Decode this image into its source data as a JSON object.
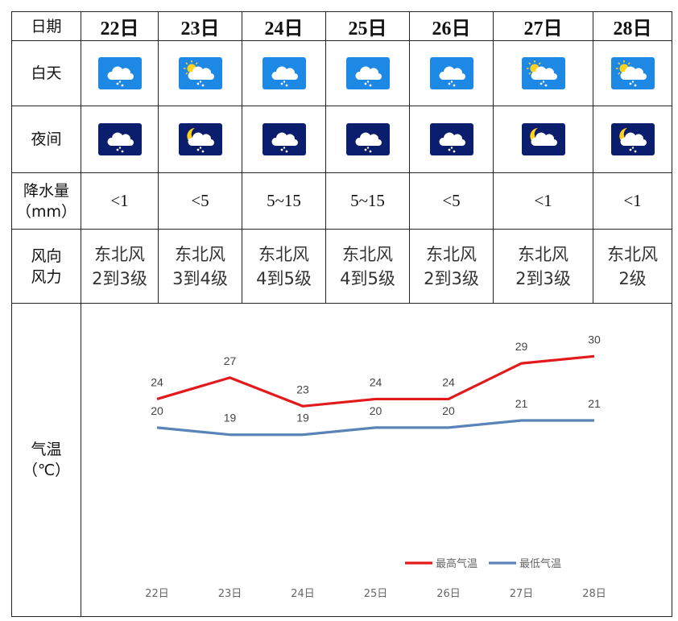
{
  "table": {
    "labels": {
      "date": "日期",
      "day": "白天",
      "night": "夜间",
      "precip_line1": "降水量",
      "precip_line2": "（mm）",
      "wind_line1": "风向",
      "wind_line2": "风力",
      "temp_line1": "气温",
      "temp_line2": "（℃）"
    },
    "days": [
      {
        "date": "22日",
        "day_icon": "rain-icon",
        "night_icon": "night-rain-icon",
        "precip": "<1",
        "wind_dir": "东北风",
        "wind_force": "2到3级"
      },
      {
        "date": "23日",
        "day_icon": "sun-cloud-rain-icon",
        "night_icon": "moon-cloud-rain-icon",
        "precip": "<5",
        "wind_dir": "东北风",
        "wind_force": "3到4级"
      },
      {
        "date": "24日",
        "day_icon": "rain-icon",
        "night_icon": "night-rain-icon",
        "precip": "5~15",
        "wind_dir": "东北风",
        "wind_force": "4到5级"
      },
      {
        "date": "25日",
        "day_icon": "rain-icon",
        "night_icon": "night-rain-icon",
        "precip": "5~15",
        "wind_dir": "东北风",
        "wind_force": "4到5级"
      },
      {
        "date": "26日",
        "day_icon": "rain-icon",
        "night_icon": "night-rain-icon",
        "precip": "<5",
        "wind_dir": "东北风",
        "wind_force": "2到3级"
      },
      {
        "date": "27日",
        "day_icon": "sun-cloud-rain-icon",
        "night_icon": "moon-cloud-icon",
        "precip": "<1",
        "wind_dir": "东北风",
        "wind_force": "2到3级"
      },
      {
        "date": "28日",
        "day_icon": "sun-cloud-rain-icon",
        "night_icon": "moon-cloud-rain-icon",
        "precip": "<1",
        "wind_dir": "东北风",
        "wind_force": "2级"
      }
    ]
  },
  "colors": {
    "day_icon_bg": "#1e88e5",
    "night_icon_bg": "#0b1e6e",
    "high_series": "#e31a1c",
    "low_series": "#5a84b8"
  },
  "chart_data": {
    "type": "line",
    "categories": [
      "22日",
      "23日",
      "24日",
      "25日",
      "26日",
      "27日",
      "28日"
    ],
    "series": [
      {
        "name": "最高气温",
        "values": [
          24,
          27,
          23,
          24,
          24,
          29,
          30
        ]
      },
      {
        "name": "最低气温",
        "values": [
          20,
          19,
          19,
          20,
          20,
          21,
          21
        ]
      }
    ],
    "ylim": [
      0,
      35
    ],
    "grid": false,
    "legend": "bottom-right",
    "data_labels": true
  }
}
